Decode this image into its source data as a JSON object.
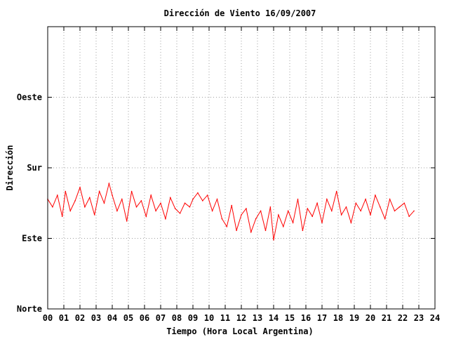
{
  "chart_data": {
    "type": "line",
    "title": "Dirección de Viento 16/09/2007",
    "xlabel": "Tiempo (Hora Local Argentina)",
    "ylabel": "Dirección",
    "xlim": [
      0,
      24
    ],
    "ylim": [
      0,
      360
    ],
    "x_ticks": [
      {
        "value": 0,
        "label": "00"
      },
      {
        "value": 1,
        "label": "01"
      },
      {
        "value": 2,
        "label": "02"
      },
      {
        "value": 3,
        "label": "03"
      },
      {
        "value": 4,
        "label": "04"
      },
      {
        "value": 5,
        "label": "05"
      },
      {
        "value": 6,
        "label": "06"
      },
      {
        "value": 7,
        "label": "07"
      },
      {
        "value": 8,
        "label": "08"
      },
      {
        "value": 9,
        "label": "09"
      },
      {
        "value": 10,
        "label": "10"
      },
      {
        "value": 11,
        "label": "11"
      },
      {
        "value": 12,
        "label": "12"
      },
      {
        "value": 13,
        "label": "13"
      },
      {
        "value": 14,
        "label": "14"
      },
      {
        "value": 15,
        "label": "15"
      },
      {
        "value": 16,
        "label": "16"
      },
      {
        "value": 17,
        "label": "17"
      },
      {
        "value": 18,
        "label": "18"
      },
      {
        "value": 19,
        "label": "19"
      },
      {
        "value": 20,
        "label": "20"
      },
      {
        "value": 21,
        "label": "21"
      },
      {
        "value": 22,
        "label": "22"
      },
      {
        "value": 23,
        "label": "23"
      },
      {
        "value": 24,
        "label": "24"
      }
    ],
    "y_ticks": [
      {
        "value": 0,
        "label": "Norte"
      },
      {
        "value": 90,
        "label": "Este"
      },
      {
        "value": 180,
        "label": "Sur"
      },
      {
        "value": 270,
        "label": "Oeste"
      }
    ],
    "grid": true,
    "series_color": "#ff0000",
    "series": [
      {
        "x": [
          0.0,
          0.3,
          0.6,
          0.9,
          1.1,
          1.4,
          1.7,
          2.0,
          2.3,
          2.6,
          2.9,
          3.2,
          3.5,
          3.8,
          4.0,
          4.3,
          4.6,
          4.9,
          5.2,
          5.5,
          5.8,
          6.1,
          6.4,
          6.7,
          7.0,
          7.3,
          7.6,
          7.9,
          8.2,
          8.5,
          8.8,
          9.0,
          9.3,
          9.6,
          9.9,
          10.2,
          10.5,
          10.8,
          11.1,
          11.4,
          11.7,
          12.0,
          12.3,
          12.6,
          12.9,
          13.2,
          13.5,
          13.8,
          14.0,
          14.3,
          14.6,
          14.9,
          15.2,
          15.5,
          15.8,
          16.1,
          16.4,
          16.7,
          17.0,
          17.3,
          17.6,
          17.9,
          18.2,
          18.5,
          18.8,
          19.1,
          19.4,
          19.7,
          20.0,
          20.3,
          20.6,
          20.9,
          21.2,
          21.5,
          21.8,
          22.1,
          22.4,
          22.7
        ],
        "y": [
          140,
          130,
          145,
          118,
          150,
          125,
          138,
          155,
          130,
          142,
          120,
          150,
          135,
          160,
          145,
          125,
          140,
          112,
          150,
          130,
          138,
          118,
          145,
          125,
          135,
          115,
          142,
          128,
          122,
          135,
          130,
          140,
          148,
          138,
          145,
          125,
          140,
          115,
          105,
          132,
          100,
          120,
          128,
          98,
          115,
          125,
          100,
          130,
          88,
          120,
          105,
          125,
          110,
          140,
          100,
          128,
          118,
          135,
          110,
          140,
          125,
          150,
          120,
          130,
          110,
          135,
          125,
          140,
          120,
          145,
          130,
          115,
          140,
          125,
          130,
          135,
          118,
          125
        ]
      }
    ]
  }
}
